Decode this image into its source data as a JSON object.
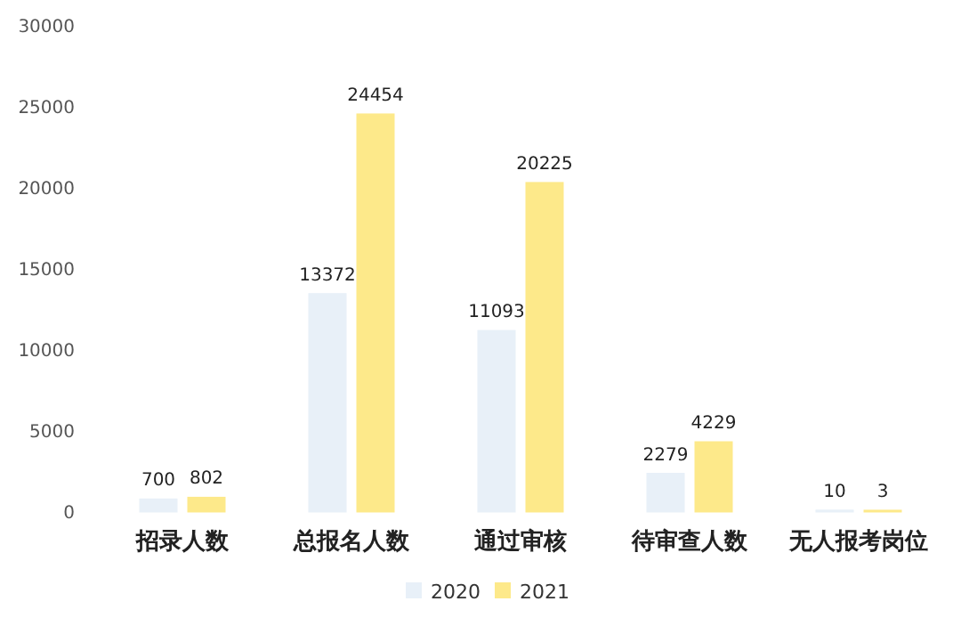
{
  "chart_data": {
    "type": "bar",
    "categories": [
      "招录人数",
      "总报名人数",
      "通过审核",
      "待审查人数",
      "无人报考岗位"
    ],
    "series": [
      {
        "name": "2020",
        "color": "#e8f0f8",
        "values": [
          700,
          13372,
          11093,
          2279,
          10
        ]
      },
      {
        "name": "2021",
        "color": "#fde98a",
        "values": [
          802,
          24454,
          20225,
          4229,
          3
        ]
      }
    ],
    "ylim": [
      0,
      30000
    ],
    "yticks": [
      0,
      5000,
      10000,
      15000,
      20000,
      25000,
      30000
    ],
    "data_labels": true,
    "grid": false,
    "legend": "bottom"
  }
}
